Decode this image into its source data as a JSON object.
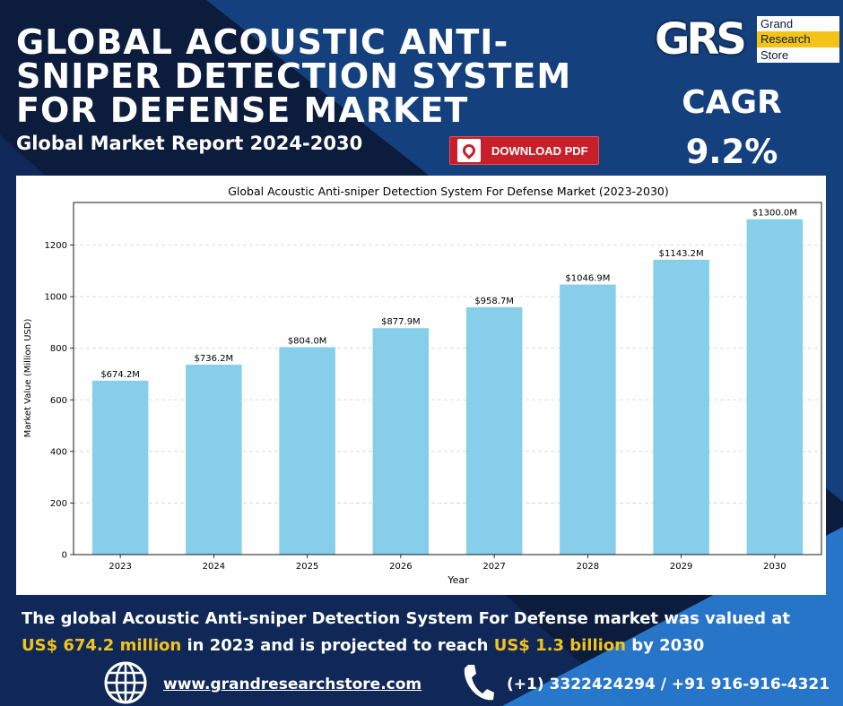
{
  "header": {
    "title": "GLOBAL ACOUSTIC ANTI-SNIPER DETECTION SYSTEM FOR DEFENSE MARKET",
    "subtitle": "Global Market Report 2024-2030",
    "download_label": "DOWNLOAD PDF"
  },
  "logo": {
    "mark": "GRS",
    "line1": "Grand",
    "line2": "Research",
    "line3": "Store"
  },
  "cagr": {
    "label": "CAGR",
    "value": "9.2%"
  },
  "summary": {
    "part1": "The global Acoustic Anti-sniper Detection System For Defense market was valued at ",
    "value2023": "US$ 674.2 million",
    "part2": " in 2023 and is projected to reach ",
    "value2030": "US$ 1.3 billion",
    "part3": " by 2030"
  },
  "footer": {
    "website": "www.grandresearchstore.com",
    "phone": "(+1) 3322424294 / +91 916-916-4321"
  },
  "colors": {
    "background": "#0b1c3d",
    "accent_blue": "#1e5fb4",
    "highlight": "#f3c31a",
    "bar": "#87ceeb",
    "pdf_button": "#c8202a"
  },
  "chart_data": {
    "type": "bar",
    "title": "Global Acoustic Anti-sniper Detection System For Defense Market (2023-2030)",
    "xlabel": "Year",
    "ylabel": "Market Value (Million USD)",
    "categories": [
      "2023",
      "2024",
      "2025",
      "2026",
      "2027",
      "2028",
      "2029",
      "2030"
    ],
    "values": [
      674.2,
      736.2,
      804.0,
      877.9,
      958.7,
      1046.9,
      1143.2,
      1300.0
    ],
    "data_labels": [
      "$674.2M",
      "$736.2M",
      "$804.0M",
      "$877.9M",
      "$958.7M",
      "$1046.9M",
      "$1143.2M",
      "$1300.0M"
    ],
    "yticks": [
      0,
      200,
      400,
      600,
      800,
      1000,
      1200
    ],
    "ylim": [
      0,
      1365
    ],
    "grid": true,
    "bar_color": "#87ceeb"
  }
}
